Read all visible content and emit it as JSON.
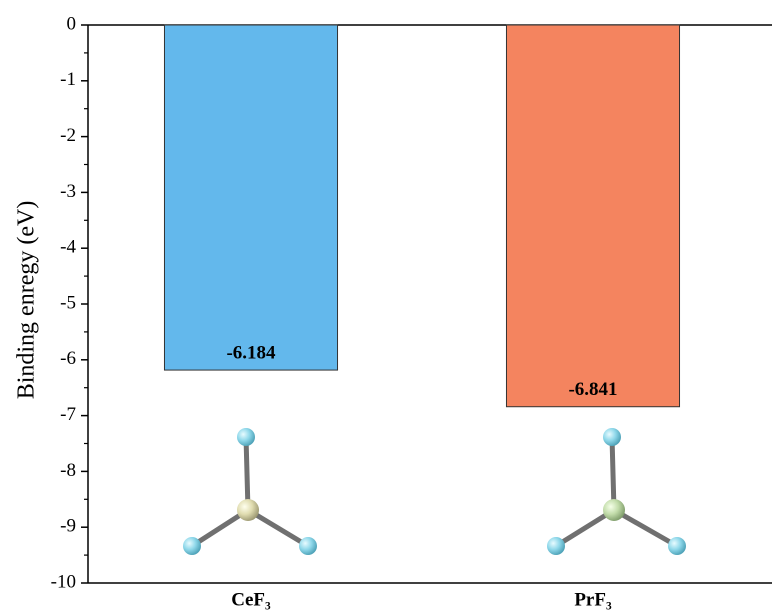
{
  "chart_data": {
    "type": "bar",
    "y_label": "Binding enregy (eV)",
    "categories": [
      "CeF₃",
      "PrF₃"
    ],
    "values": [
      -6.184,
      -6.841
    ],
    "colors": [
      "#63b8ec",
      "#f4845f"
    ],
    "ylim": [
      -10,
      0
    ],
    "yticks": [
      -10,
      -9,
      -8,
      -7,
      -6,
      -5,
      -4,
      -3,
      -2,
      -1,
      0
    ],
    "minor_yticks": [
      -9.5,
      -8.5,
      -7.5,
      -6.5,
      -5.5,
      -4.5,
      -3.5,
      -2.5,
      -1.5,
      -0.5
    ],
    "data_labels": true
  }
}
